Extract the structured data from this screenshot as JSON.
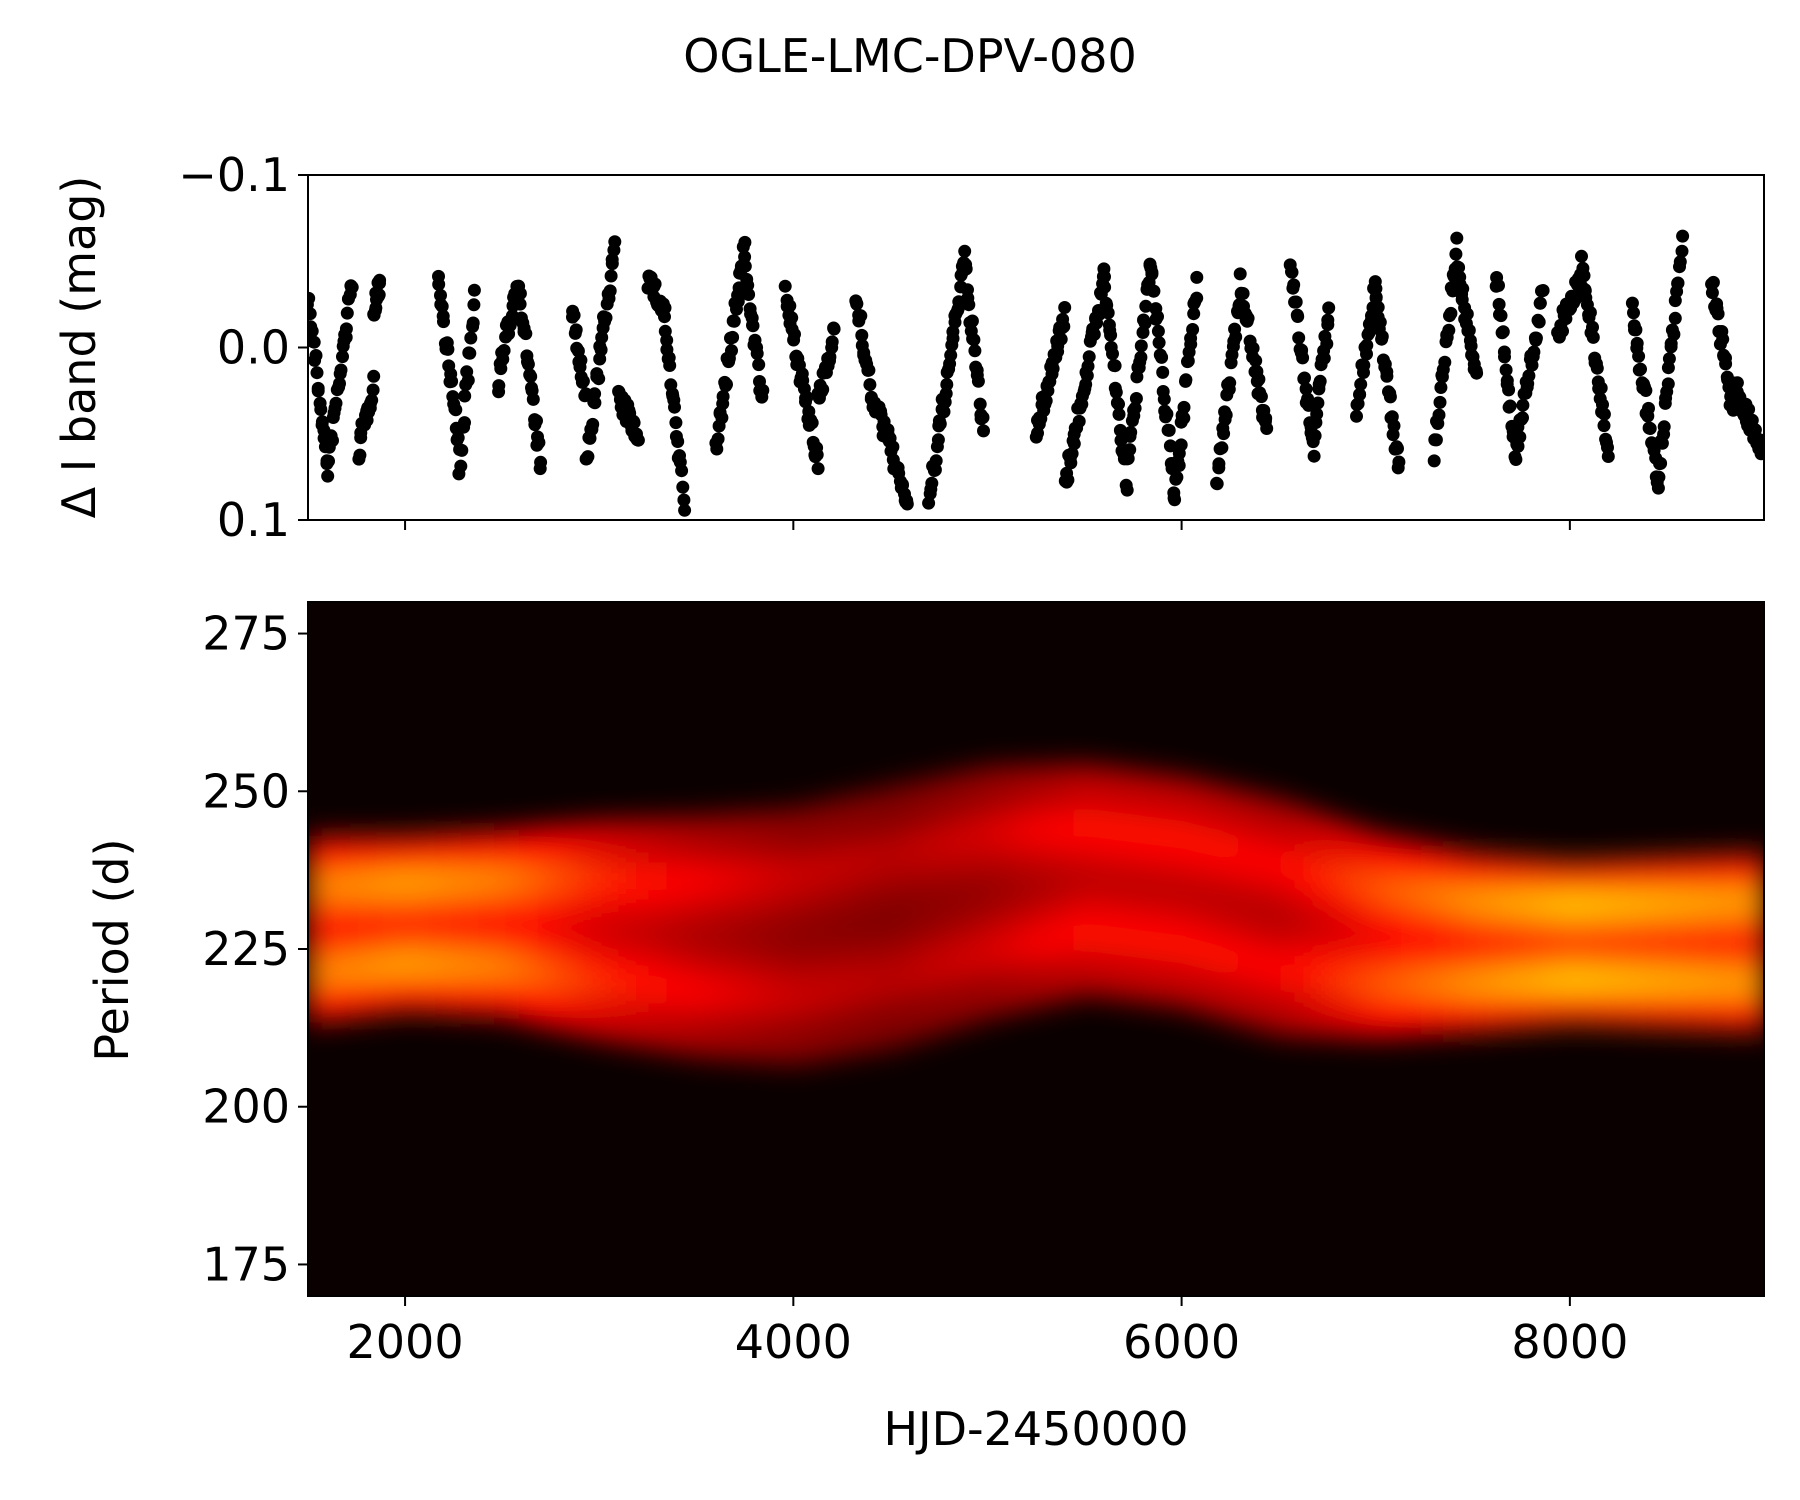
{
  "figure_title": "OGLE-LMC-DPV-080",
  "chart_data": [
    {
      "type": "scatter",
      "ylabel": "Δ I band (mag)",
      "xlabel": "",
      "xlim": [
        1500,
        9000
      ],
      "ylim": [
        0.1,
        -0.1
      ],
      "y_inverted": true,
      "y_ticks": [
        -0.1,
        0.0,
        0.1
      ],
      "y_tick_labels": [
        "−0.1",
        "0.0",
        "0.1"
      ],
      "x_ticks": [
        2000,
        4000,
        6000,
        8000
      ],
      "x_tick_labels_shown": false,
      "marker_color": "#000000",
      "segments": [
        {
          "t0": 1500,
          "t1": 1600,
          "m0": -0.03,
          "m1": 0.07
        },
        {
          "t0": 1600,
          "t1": 1730,
          "m0": 0.07,
          "m1": -0.04
        },
        {
          "t0": 1760,
          "t1": 1840,
          "m0": 0.06,
          "m1": 0.02
        },
        {
          "t0": 1840,
          "t1": 1870,
          "m0": -0.02,
          "m1": -0.04
        },
        {
          "t0": 2170,
          "t1": 2280,
          "m0": -0.04,
          "m1": 0.06
        },
        {
          "t0": 2280,
          "t1": 2360,
          "m0": 0.07,
          "m1": -0.03
        },
        {
          "t0": 2480,
          "t1": 2580,
          "m0": 0.02,
          "m1": -0.04
        },
        {
          "t0": 2580,
          "t1": 2700,
          "m0": -0.04,
          "m1": 0.07
        },
        {
          "t0": 2860,
          "t1": 2930,
          "m0": -0.02,
          "m1": 0.03
        },
        {
          "t0": 2930,
          "t1": 3080,
          "m0": 0.07,
          "m1": -0.06
        },
        {
          "t0": 3100,
          "t1": 3200,
          "m0": 0.03,
          "m1": 0.05
        },
        {
          "t0": 3250,
          "t1": 3340,
          "m0": -0.04,
          "m1": -0.02
        },
        {
          "t0": 3340,
          "t1": 3440,
          "m0": -0.01,
          "m1": 0.09
        },
        {
          "t0": 3600,
          "t1": 3750,
          "m0": 0.06,
          "m1": -0.06
        },
        {
          "t0": 3750,
          "t1": 3840,
          "m0": -0.05,
          "m1": 0.03
        },
        {
          "t0": 3960,
          "t1": 4130,
          "m0": -0.03,
          "m1": 0.07
        },
        {
          "t0": 4130,
          "t1": 4210,
          "m0": 0.03,
          "m1": -0.01
        },
        {
          "t0": 4320,
          "t1": 4420,
          "m0": -0.03,
          "m1": 0.04
        },
        {
          "t0": 4420,
          "t1": 4590,
          "m0": 0.03,
          "m1": 0.09
        },
        {
          "t0": 4700,
          "t1": 4880,
          "m0": 0.09,
          "m1": -0.05
        },
        {
          "t0": 4880,
          "t1": 4980,
          "m0": -0.05,
          "m1": 0.05
        },
        {
          "t0": 5250,
          "t1": 5400,
          "m0": 0.05,
          "m1": -0.02
        },
        {
          "t0": 5400,
          "t1": 5600,
          "m0": 0.08,
          "m1": -0.04
        },
        {
          "t0": 5600,
          "t1": 5720,
          "m0": -0.04,
          "m1": 0.08
        },
        {
          "t0": 5720,
          "t1": 5840,
          "m0": 0.07,
          "m1": -0.05
        },
        {
          "t0": 5840,
          "t1": 5960,
          "m0": -0.05,
          "m1": 0.08
        },
        {
          "t0": 5960,
          "t1": 6080,
          "m0": 0.09,
          "m1": -0.04
        },
        {
          "t0": 6180,
          "t1": 6300,
          "m0": 0.08,
          "m1": -0.03
        },
        {
          "t0": 6300,
          "t1": 6440,
          "m0": -0.04,
          "m1": 0.05
        },
        {
          "t0": 6560,
          "t1": 6680,
          "m0": -0.05,
          "m1": 0.06
        },
        {
          "t0": 6680,
          "t1": 6760,
          "m0": 0.05,
          "m1": -0.02
        },
        {
          "t0": 6900,
          "t1": 7000,
          "m0": 0.04,
          "m1": -0.04
        },
        {
          "t0": 7000,
          "t1": 7120,
          "m0": -0.03,
          "m1": 0.07
        },
        {
          "t0": 7300,
          "t1": 7420,
          "m0": 0.06,
          "m1": -0.06
        },
        {
          "t0": 7420,
          "t1": 7520,
          "m0": -0.05,
          "m1": 0.02
        },
        {
          "t0": 7620,
          "t1": 7720,
          "m0": -0.04,
          "m1": 0.06
        },
        {
          "t0": 7720,
          "t1": 7860,
          "m0": 0.06,
          "m1": -0.03
        },
        {
          "t0": 7940,
          "t1": 8060,
          "m0": -0.01,
          "m1": -0.04
        },
        {
          "t0": 8060,
          "t1": 8200,
          "m0": -0.05,
          "m1": 0.06
        },
        {
          "t0": 8320,
          "t1": 8460,
          "m0": -0.02,
          "m1": 0.08
        },
        {
          "t0": 8460,
          "t1": 8580,
          "m0": 0.07,
          "m1": -0.06
        },
        {
          "t0": 8730,
          "t1": 8840,
          "m0": -0.04,
          "m1": 0.04
        },
        {
          "t0": 8840,
          "t1": 8990,
          "m0": 0.02,
          "m1": 0.06
        }
      ]
    },
    {
      "type": "heatmap",
      "xlabel": "HJD-2450000",
      "ylabel": "Period (d)",
      "xlim": [
        1500,
        9000
      ],
      "ylim": [
        170,
        280
      ],
      "x_ticks": [
        2000,
        4000,
        6000,
        8000
      ],
      "x_tick_labels": [
        "2000",
        "4000",
        "6000",
        "8000"
      ],
      "y_ticks": [
        175,
        200,
        225,
        250,
        275
      ],
      "y_tick_labels": [
        "175",
        "200",
        "225",
        "250",
        "275"
      ],
      "colormap": "hot",
      "ridge": [
        {
          "t": 1500,
          "period": 228,
          "power": 0.85
        },
        {
          "t": 2000,
          "period": 229,
          "power": 0.92
        },
        {
          "t": 2500,
          "period": 229,
          "power": 0.85
        },
        {
          "t": 3000,
          "period": 228,
          "power": 0.65
        },
        {
          "t": 3500,
          "period": 227,
          "power": 0.52
        },
        {
          "t": 4000,
          "period": 227,
          "power": 0.42
        },
        {
          "t": 4500,
          "period": 230,
          "power": 0.38
        },
        {
          "t": 5000,
          "period": 234,
          "power": 0.45
        },
        {
          "t": 5500,
          "period": 236,
          "power": 0.58
        },
        {
          "t": 6000,
          "period": 234,
          "power": 0.58
        },
        {
          "t": 6500,
          "period": 230,
          "power": 0.55
        },
        {
          "t": 7000,
          "period": 227,
          "power": 0.75
        },
        {
          "t": 7500,
          "period": 226,
          "power": 0.9
        },
        {
          "t": 8000,
          "period": 226,
          "power": 1.0
        },
        {
          "t": 8500,
          "period": 226,
          "power": 0.95
        },
        {
          "t": 9000,
          "period": 226,
          "power": 0.9
        }
      ]
    }
  ]
}
